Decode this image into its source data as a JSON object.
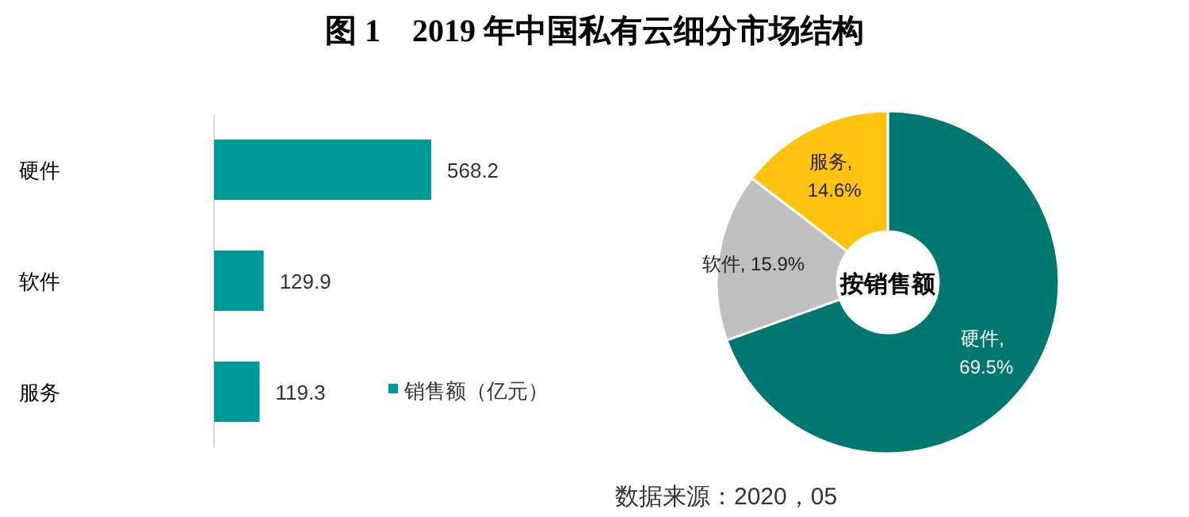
{
  "chart_data": [
    {
      "type": "bar",
      "orientation": "horizontal",
      "title": "图 1　2019 年中国私有云细分市场结构",
      "categories": [
        "硬件",
        "软件",
        "服务"
      ],
      "series": [
        {
          "name": "销售额（亿元）",
          "color": "#009999",
          "values": [
            568.2,
            129.9,
            119.3
          ]
        }
      ],
      "data_labels": true,
      "legend": "bottom right"
    },
    {
      "type": "donut",
      "categories": [
        "硬件",
        "软件",
        "服务"
      ],
      "values": [
        69.5,
        15.9,
        14.6
      ],
      "colors": [
        "#00786f",
        "#bfbfbf",
        "#ffc20e"
      ],
      "value_labels": [
        ", 69.5%",
        ", 15.9%",
        ", 14.6%"
      ],
      "annotations": [
        "按销售额",
        "数据来源：2020，05"
      ]
    }
  ]
}
